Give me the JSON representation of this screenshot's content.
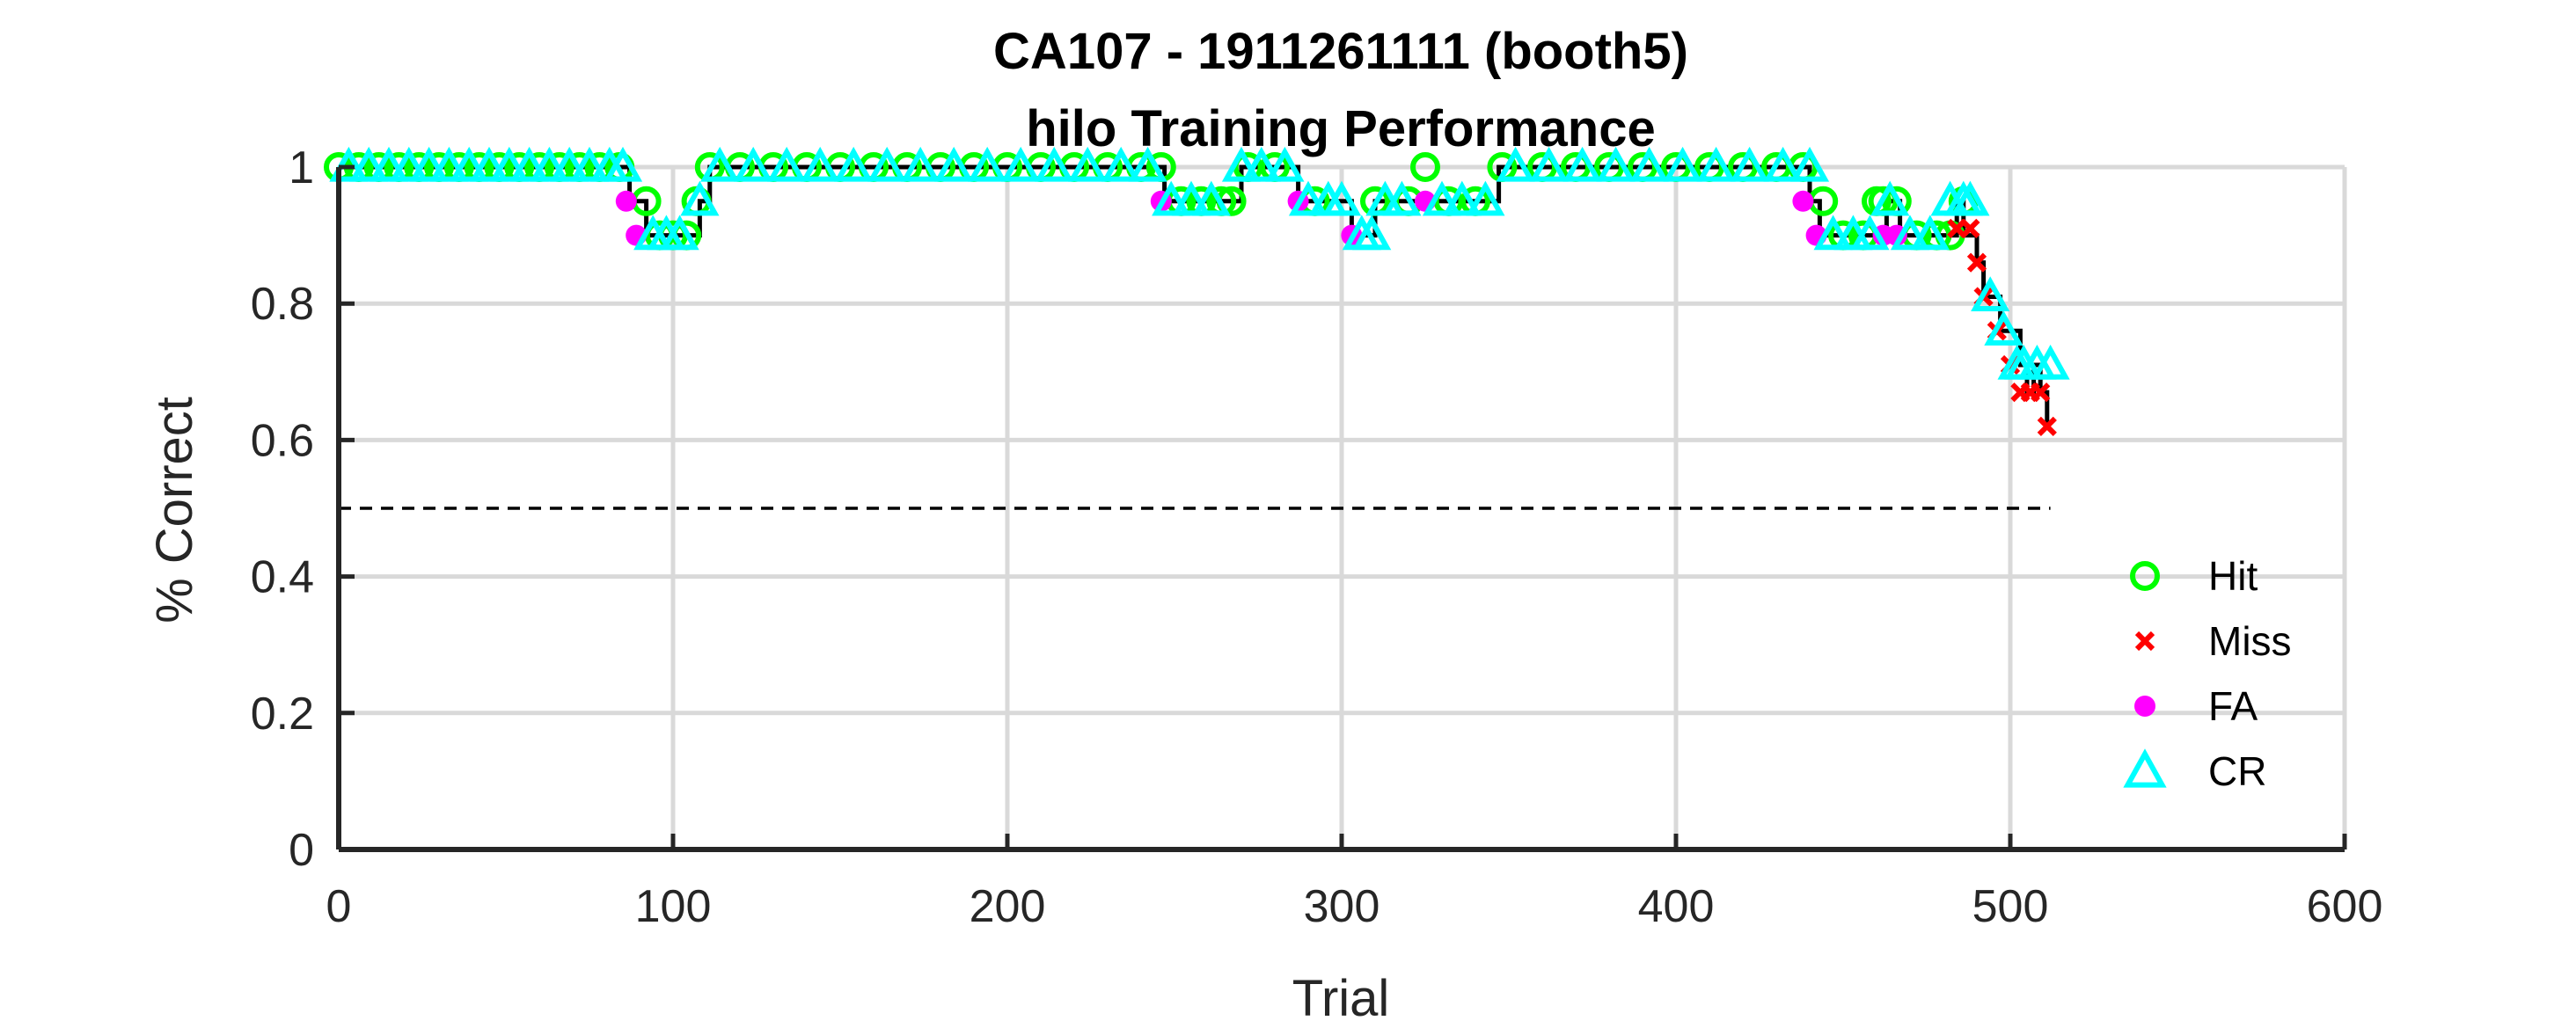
{
  "chart_data": {
    "type": "line",
    "title": "CA107 - 1911261111 (booth5)",
    "subtitle": "hilo Training Performance",
    "xlabel": "Trial",
    "ylabel": "% Correct",
    "xlim": [
      0,
      600
    ],
    "ylim": [
      0,
      1
    ],
    "xticks": [
      "0",
      "100",
      "200",
      "300",
      "400",
      "500",
      "600"
    ],
    "yticks": [
      "0",
      "0.2",
      "0.4",
      "0.6",
      "0.8",
      "1"
    ],
    "grid": true,
    "legend_position": "lower-right",
    "chance_line": {
      "y": 0.5,
      "x": [
        0,
        512
      ],
      "style": "dashed"
    },
    "performance": {
      "x": [
        0,
        86,
        87,
        89,
        92,
        100,
        106,
        108,
        110,
        111,
        150,
        200,
        246,
        247,
        250,
        260,
        267,
        270,
        280,
        287,
        290,
        300,
        303,
        306,
        310,
        318,
        325,
        330,
        346,
        347,
        380,
        420,
        438,
        440,
        443,
        450,
        460,
        463,
        467,
        470,
        480,
        484,
        486,
        488,
        490,
        492,
        495,
        497,
        500,
        503,
        505,
        507,
        509,
        511
      ],
      "y": [
        1.0,
        1.0,
        0.95,
        0.95,
        0.9,
        0.9,
        0.9,
        0.95,
        0.95,
        1.0,
        1.0,
        1.0,
        1.0,
        0.95,
        0.95,
        0.95,
        0.95,
        1.0,
        1.0,
        0.95,
        0.95,
        0.95,
        0.9,
        0.9,
        0.95,
        0.95,
        0.95,
        0.95,
        0.95,
        1.0,
        1.0,
        1.0,
        1.0,
        0.95,
        0.9,
        0.9,
        0.9,
        0.95,
        0.9,
        0.9,
        0.9,
        0.95,
        0.9,
        0.9,
        0.86,
        0.81,
        0.81,
        0.76,
        0.76,
        0.71,
        0.67,
        0.71,
        0.67,
        0.62
      ]
    },
    "series": [
      {
        "name": "Hit",
        "marker": "circle",
        "color": "#00ff00",
        "x": [
          0,
          6,
          12,
          18,
          24,
          30,
          36,
          42,
          48,
          54,
          60,
          66,
          72,
          78,
          84,
          92,
          96,
          100,
          104,
          107,
          111,
          120,
          130,
          140,
          150,
          160,
          170,
          180,
          190,
          200,
          210,
          220,
          230,
          240,
          246,
          252,
          258,
          264,
          267,
          272,
          280,
          292,
          310,
          320,
          325,
          332,
          340,
          348,
          360,
          370,
          380,
          390,
          400,
          410,
          420,
          430,
          438,
          444,
          450,
          456,
          460,
          462,
          466,
          472,
          478,
          482,
          486
        ],
        "y": [
          1.0,
          1.0,
          1.0,
          1.0,
          1.0,
          1.0,
          1.0,
          1.0,
          1.0,
          1.0,
          1.0,
          1.0,
          1.0,
          1.0,
          1.0,
          0.95,
          0.9,
          0.9,
          0.9,
          0.95,
          1.0,
          1.0,
          1.0,
          1.0,
          1.0,
          1.0,
          1.0,
          1.0,
          1.0,
          1.0,
          1.0,
          1.0,
          1.0,
          1.0,
          1.0,
          0.95,
          0.95,
          0.95,
          0.95,
          1.0,
          1.0,
          0.95,
          0.95,
          0.95,
          1.0,
          0.95,
          0.95,
          1.0,
          1.0,
          1.0,
          1.0,
          1.0,
          1.0,
          1.0,
          1.0,
          1.0,
          1.0,
          0.95,
          0.9,
          0.9,
          0.95,
          0.95,
          0.95,
          0.9,
          0.9,
          0.9,
          0.95
        ]
      },
      {
        "name": "Miss",
        "marker": "x",
        "color": "#ff0000",
        "x": [
          484,
          488,
          490,
          492,
          496,
          500,
          503,
          506,
          509,
          511
        ],
        "y": [
          0.91,
          0.91,
          0.86,
          0.81,
          0.76,
          0.71,
          0.67,
          0.67,
          0.67,
          0.62
        ]
      },
      {
        "name": "FA",
        "marker": "dot",
        "color": "#ff00ff",
        "x": [
          86,
          89,
          246,
          287,
          303,
          325,
          438,
          442,
          462,
          466
        ],
        "y": [
          0.95,
          0.9,
          0.95,
          0.95,
          0.9,
          0.95,
          0.95,
          0.9,
          0.9,
          0.9
        ]
      },
      {
        "name": "CR",
        "marker": "triangle",
        "color": "#00ffff",
        "x": [
          3,
          9,
          15,
          21,
          27,
          33,
          39,
          45,
          51,
          57,
          63,
          69,
          75,
          81,
          85,
          94,
          98,
          102,
          108,
          114,
          124,
          134,
          144,
          154,
          164,
          174,
          184,
          194,
          204,
          214,
          224,
          234,
          242,
          249,
          255,
          261,
          270,
          276,
          283,
          290,
          296,
          300,
          306,
          309,
          313,
          318,
          330,
          336,
          343,
          352,
          362,
          372,
          382,
          392,
          402,
          412,
          422,
          432,
          440,
          447,
          453,
          458,
          464,
          470,
          476,
          482,
          486,
          488,
          494,
          498,
          502,
          504,
          508,
          512
        ],
        "y": [
          1.0,
          1.0,
          1.0,
          1.0,
          1.0,
          1.0,
          1.0,
          1.0,
          1.0,
          1.0,
          1.0,
          1.0,
          1.0,
          1.0,
          1.0,
          0.9,
          0.9,
          0.9,
          0.95,
          1.0,
          1.0,
          1.0,
          1.0,
          1.0,
          1.0,
          1.0,
          1.0,
          1.0,
          1.0,
          1.0,
          1.0,
          1.0,
          1.0,
          0.95,
          0.95,
          0.95,
          1.0,
          1.0,
          1.0,
          0.95,
          0.95,
          0.95,
          0.9,
          0.9,
          0.95,
          0.95,
          0.95,
          0.95,
          0.95,
          1.0,
          1.0,
          1.0,
          1.0,
          1.0,
          1.0,
          1.0,
          1.0,
          1.0,
          1.0,
          0.9,
          0.9,
          0.9,
          0.95,
          0.9,
          0.9,
          0.95,
          0.95,
          0.95,
          0.81,
          0.76,
          0.71,
          0.71,
          0.71,
          0.71
        ]
      }
    ]
  }
}
